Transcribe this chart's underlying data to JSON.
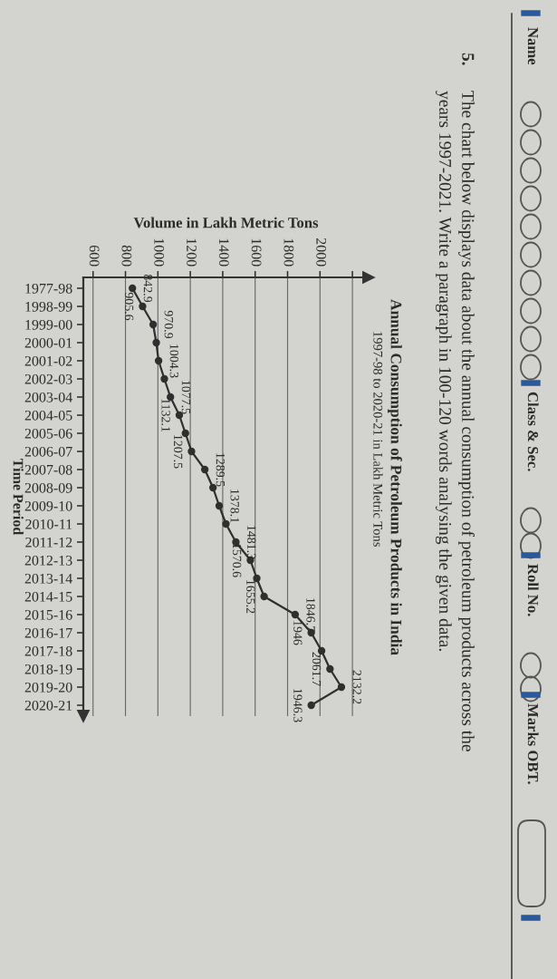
{
  "chart_data": {
    "type": "line",
    "orientation": "horizontal",
    "title": "Annual Consumption of Petroleum Products in India",
    "subtitle": "1997-98 to 2020-21 in Lakh Metric Tons",
    "xlabel": "Volume in Lakh Metric Tons",
    "ylabel": "Time Period",
    "categories": [
      "1977-98",
      "1998-99",
      "1999-00",
      "2000-01",
      "2001-02",
      "2002-03",
      "2003-04",
      "2004-05",
      "2005-06",
      "2006-07",
      "2007-08",
      "2008-09",
      "2009-10",
      "2010-11",
      "2011-12",
      "2012-13",
      "2013-14",
      "2014-15",
      "2015-16",
      "2016-17",
      "2017-18",
      "2018-19",
      "2019-20",
      "2020-21"
    ],
    "values": [
      842.9,
      905.6,
      970.9,
      990,
      1004.3,
      1040,
      1077.5,
      1132.1,
      1170,
      1207.5,
      1289.5,
      1340,
      1378.1,
      1420,
      1481.3,
      1570.6,
      1610,
      1655.2,
      1846.7,
      1946,
      2010,
      2061.7,
      2132.2,
      1946.3
    ],
    "value_labels": [
      "842.9",
      "905.6",
      "970.9",
      null,
      "1004.3",
      null,
      "1077.5",
      "1132.1",
      null,
      "1207.5",
      "1289.5",
      null,
      "1378.1",
      null,
      "1481.3",
      "1570.6",
      null,
      "1655.2",
      "1846.7",
      "1946",
      null,
      "2061.7",
      "2132.2",
      "1946.3"
    ],
    "color": "#2f2f2f",
    "marker": "circle",
    "line_style": "solid",
    "grid": "x",
    "xlim": [
      540,
      2300
    ],
    "xticks": [
      600,
      800,
      1000,
      1200,
      1400,
      1600,
      1800,
      2000,
      {
        "value": 2200,
        "label": null
      }
    ],
    "annotations": [
      "Name",
      "Class & Sec.",
      "Roll No.",
      "Marks OBT.",
      "5.",
      "The chart below displays data about the annual consumption of petroleum products across the\nyears 1997-2021. Write a paragraph in 100-120 words analysing the given data."
    ]
  }
}
